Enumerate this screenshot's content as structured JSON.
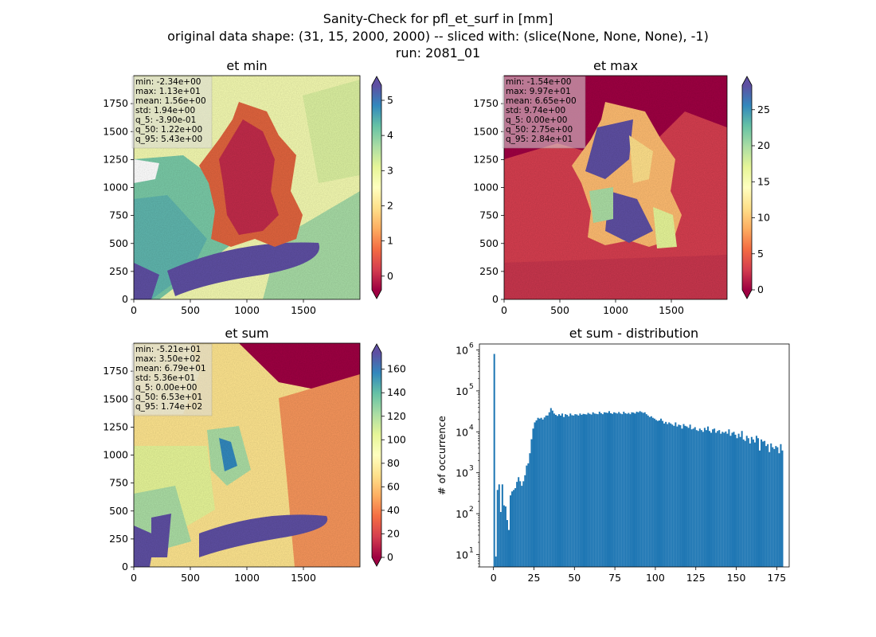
{
  "figure": {
    "title_lines": [
      "Sanity-Check for pfl_et_surf in [mm]",
      "original data shape: (31, 15, 2000, 2000) -- sliced with: (slice(None, None, None), -1)",
      "run: 2081_01"
    ]
  },
  "map_axes": {
    "x_ticks": [
      "0",
      "500",
      "1000",
      "1500"
    ],
    "x_tick_values": [
      0,
      500,
      1000,
      1500
    ],
    "y_ticks": [
      "0",
      "250",
      "500",
      "750",
      "1000",
      "1250",
      "1500",
      "1750"
    ],
    "y_tick_values": [
      0,
      250,
      500,
      750,
      1000,
      1250,
      1500,
      1750
    ],
    "xlim": [
      0,
      2000
    ],
    "ylim": [
      0,
      2000
    ]
  },
  "panels": [
    {
      "title": "et min",
      "colormap": "Spectral",
      "colorbar": {
        "ticks": [
          "0",
          "1",
          "2",
          "3",
          "4",
          "5"
        ],
        "tick_values": [
          0,
          1,
          2,
          3,
          4,
          5
        ],
        "vmin": -0.39,
        "vmax": 5.43,
        "extend": "both"
      },
      "stats": [
        "min: -2.34e+00",
        "max: 1.13e+01",
        "mean: 1.56e+00",
        "std: 1.94e+00",
        "q_5: -3.90e-01",
        "q_50: 1.22e+00",
        "q_95: 5.43e+00"
      ]
    },
    {
      "title": "et max",
      "colormap": "Spectral",
      "colorbar": {
        "ticks": [
          "0",
          "5",
          "10",
          "15",
          "20",
          "25"
        ],
        "tick_values": [
          0,
          5,
          10,
          15,
          20,
          25
        ],
        "vmin": 0.0,
        "vmax": 28.4,
        "extend": "both"
      },
      "stats": [
        "min: -1.54e+00",
        "max: 9.97e+01",
        "mean: 6.65e+00",
        "std: 9.74e+00",
        "q_5: 0.00e+00",
        "q_50: 2.75e+00",
        "q_95: 2.84e+01"
      ]
    },
    {
      "title": "et sum",
      "colormap": "Spectral",
      "colorbar": {
        "ticks": [
          "0",
          "20",
          "40",
          "60",
          "80",
          "100",
          "120",
          "140",
          "160"
        ],
        "tick_values": [
          0,
          20,
          40,
          60,
          80,
          100,
          120,
          140,
          160
        ],
        "vmin": 0.0,
        "vmax": 174,
        "extend": "both"
      },
      "stats": [
        "min: -5.21e+01",
        "max: 3.50e+02",
        "mean: 6.79e+01",
        "std: 5.36e+01",
        "q_5: 0.00e+00",
        "q_50: 6.53e+01",
        "q_95: 1.74e+02"
      ]
    }
  ],
  "chart_data": {
    "type": "bar",
    "title": "et sum - distribution",
    "xlabel": "",
    "ylabel": "# of occurrence",
    "yscale": "log",
    "xlim": [
      -8.7,
      182.7
    ],
    "ylim": [
      5,
      1400000
    ],
    "x_ticks": [
      "0",
      "25",
      "50",
      "75",
      "100",
      "125",
      "150",
      "175"
    ],
    "x_tick_values": [
      0,
      25,
      50,
      75,
      100,
      125,
      150,
      175
    ],
    "y_ticks": [
      "10",
      "10",
      "10",
      "10",
      "10",
      "10"
    ],
    "y_tick_exponents": [
      "1",
      "2",
      "3",
      "4",
      "5",
      "6"
    ],
    "y_tick_values": [
      10,
      100,
      1000,
      10000,
      100000,
      1000000
    ],
    "color": "#1f77b4",
    "bin_start": 0,
    "bin_width": 1,
    "counts": [
      800000,
      9,
      380,
      520,
      110,
      520,
      160,
      150,
      70,
      40,
      280,
      350,
      380,
      420,
      600,
      780,
      620,
      480,
      620,
      870,
      1500,
      1700,
      3000,
      6600,
      12000,
      17000,
      19000,
      22000,
      21000,
      22000,
      20000,
      22500,
      25000,
      25000,
      30000,
      38000,
      33000,
      28000,
      26000,
      24500,
      27000,
      25000,
      28000,
      23000,
      27000,
      26000,
      24000,
      28000,
      25500,
      25000,
      27000,
      26500,
      25000,
      28000,
      26000,
      27500,
      27000,
      26500,
      29000,
      27500,
      26500,
      30000,
      28000,
      27500,
      27000,
      31000,
      28500,
      27000,
      30000,
      29500,
      29000,
      32000,
      28500,
      27500,
      30000,
      29000,
      28000,
      30500,
      28000,
      27000,
      31000,
      28500,
      27500,
      29000,
      27000,
      30000,
      29500,
      28000,
      31000,
      30000,
      32000,
      30500,
      29000,
      30000,
      27000,
      25000,
      23000,
      24000,
      22000,
      21000,
      19500,
      18500,
      19000,
      21000,
      18500,
      16000,
      17500,
      15500,
      17000,
      16000,
      15000,
      14000,
      17000,
      13500,
      15000,
      14500,
      12000,
      15500,
      14000,
      13500,
      12500,
      15000,
      11500,
      12000,
      13000,
      11000,
      10500,
      12000,
      11000,
      10000,
      12500,
      11000,
      13500,
      10500,
      9500,
      11500,
      12000,
      9500,
      10500,
      11000,
      9000,
      10000,
      9500,
      10200,
      9000,
      11500,
      8000,
      9500,
      10000,
      8500,
      7000,
      9000,
      7500,
      10500,
      6500,
      6000,
      8000,
      7000,
      5200,
      7500,
      6500,
      5500,
      8000,
      7000,
      3500,
      6500,
      5800,
      6000,
      4500,
      5000,
      3200,
      5200,
      4200,
      3800,
      4500,
      4200,
      3000,
      5000,
      3500
    ]
  }
}
